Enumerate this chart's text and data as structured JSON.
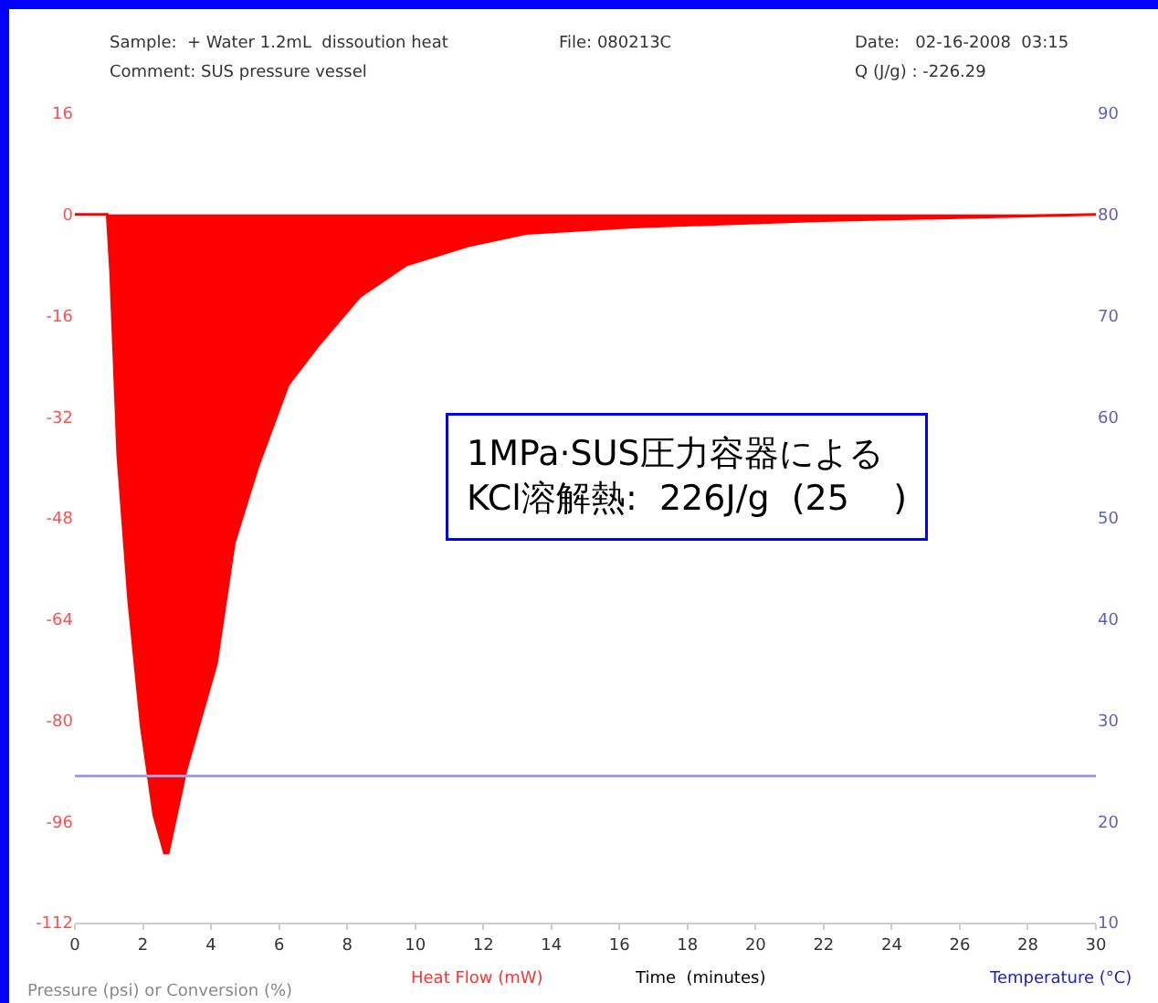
{
  "chart_data": {
    "type": "area",
    "xlabel": "Time  (minutes)",
    "annotations": [
      "Sample:  + Water 1.2mL  dissoution heat",
      "File: 080213C",
      "Date:   02-16-2008  03:15",
      "Comment: SUS pressure vessel",
      "Q (J/g) : -226.29",
      "Pressure (psi) or Conversion (%)",
      "Heat Flow (mW)",
      "Temperature (°C)",
      "1MPa·SUS圧力容器による\nKCl溶解熱:  226J/g  (25    )"
    ],
    "series": [
      {
        "name": null,
        "color": "#ff0000",
        "x": [
          0,
          0.95,
          1.05,
          1.26,
          1.58,
          1.95,
          2.32,
          2.63,
          2.74,
          3.26,
          4.16,
          4.68,
          5.37,
          6.26,
          7.11,
          8.37,
          9.74,
          11.53,
          13.26,
          16.4,
          21.7,
          30
        ],
        "values": [
          0,
          0,
          -9,
          -38,
          -61,
          -81,
          -95,
          -101,
          -101,
          -88,
          -71,
          -52,
          -40,
          -27,
          -21,
          -13,
          -8,
          -5,
          -3,
          -2,
          -1,
          0
        ]
      },
      {
        "name": null,
        "type": "line",
        "axis": "y2",
        "color": "#a0a0e0",
        "x": [
          0,
          30
        ],
        "values": [
          24.5,
          24.5
        ]
      }
    ],
    "xlim": [
      0,
      30
    ],
    "xticks": [
      0,
      2,
      4,
      6,
      8,
      10,
      12,
      14,
      16,
      18,
      20,
      22,
      24,
      26,
      28,
      30
    ],
    "ylim": [
      -112,
      16
    ],
    "yticks": [
      16,
      0,
      -16,
      -32,
      -48,
      -64,
      -80,
      -96,
      -112
    ],
    "y2lim": [
      10,
      90
    ],
    "y2ticks": [
      10,
      20,
      30,
      40,
      50,
      60,
      70,
      80,
      90
    ],
    "grid": false,
    "marker": "none",
    "line_style": "solid"
  }
}
